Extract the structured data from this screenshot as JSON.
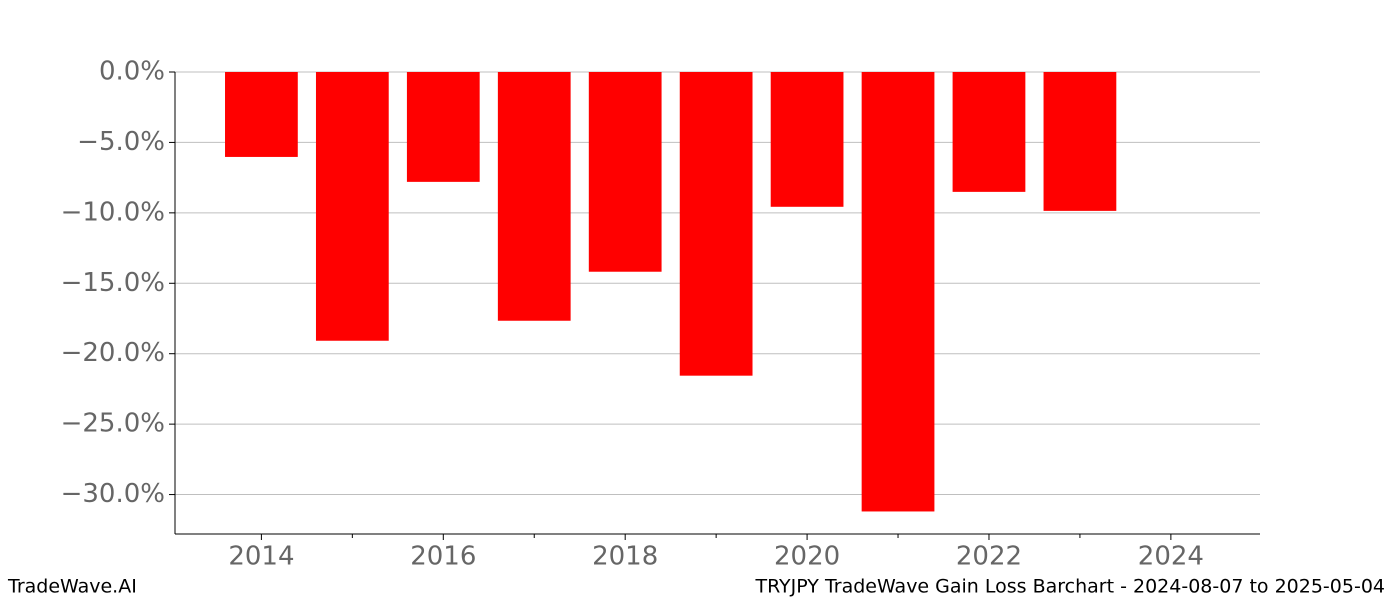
{
  "chart_data": {
    "type": "bar",
    "title": "TRYJPY TradeWave Gain Loss Barchart - 2024-08-07 to 2025-05-04",
    "brand": "TradeWave.AI",
    "x": [
      2014,
      2015,
      2016,
      2017,
      2018,
      2019,
      2020,
      2021,
      2022,
      2023
    ],
    "values": [
      -6.03,
      -19.08,
      -7.8,
      -17.66,
      -14.18,
      -21.56,
      -9.57,
      -31.2,
      -8.51,
      -9.86
    ],
    "color": "#ff0000",
    "bar_width": 0.8,
    "xlim": [
      2013.05,
      2024.98
    ],
    "xticks": [
      2014,
      2016,
      2018,
      2020,
      2022,
      2024
    ],
    "xminorticks": [
      2015,
      2017,
      2019,
      2021,
      2023
    ],
    "ylim": [
      -32.8,
      0
    ],
    "yticks": [
      {
        "value": 0,
        "label": "0.0%"
      },
      {
        "value": -5,
        "label": "−5.0%"
      },
      {
        "value": -10,
        "label": "−10.0%"
      },
      {
        "value": -15,
        "label": "−15.0%"
      },
      {
        "value": -20,
        "label": "−20.0%"
      },
      {
        "value": -25,
        "label": "−25.0%"
      },
      {
        "value": -30,
        "label": "−30.0%"
      }
    ],
    "grid": true
  }
}
